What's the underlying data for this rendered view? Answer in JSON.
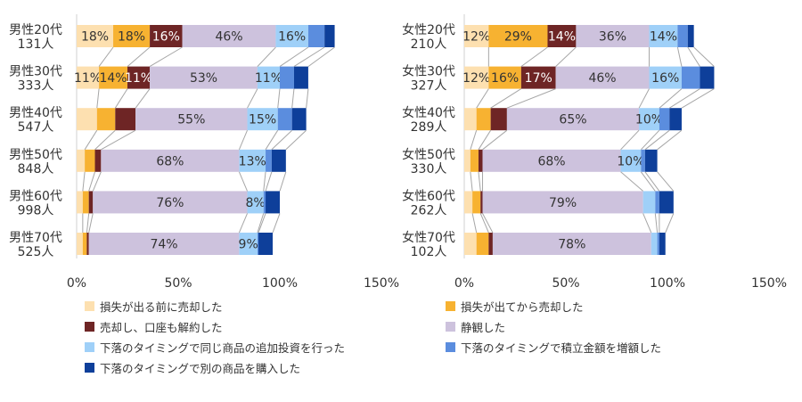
{
  "chart_data": [
    {
      "type": "bar",
      "orientation": "horizontal",
      "stacked": true,
      "categories": [
        [
          "男性20代",
          "131人"
        ],
        [
          "男性30代",
          "333人"
        ],
        [
          "男性40代",
          "547人"
        ],
        [
          "男性50代",
          "848人"
        ],
        [
          "男性60代",
          "998人"
        ],
        [
          "男性70代",
          "525人"
        ]
      ],
      "xlim": [
        0,
        150
      ],
      "xticks": [
        "0%",
        "50%",
        "100%",
        "150%"
      ],
      "grid": false,
      "series": [
        {
          "name": "損失が出る前に売却した",
          "values": [
            18,
            11,
            10,
            4,
            3,
            3
          ]
        },
        {
          "name": "損失が出てから売却した",
          "values": [
            18,
            14,
            9,
            5,
            3,
            2
          ]
        },
        {
          "name": "売却し、口座も解約した",
          "values": [
            16,
            11,
            10,
            3,
            2,
            1
          ]
        },
        {
          "name": "静観した",
          "values": [
            46,
            53,
            55,
            68,
            76,
            74
          ]
        },
        {
          "name": "下落のタイミングで同じ商品の追加投資を行った",
          "values": [
            16,
            11,
            15,
            13,
            8,
            9
          ]
        },
        {
          "name": "下落のタイミングで積立金額を増額した",
          "values": [
            8,
            7,
            7,
            3,
            1,
            0.5
          ]
        },
        {
          "name": "下落のタイミングで別の商品を購入した",
          "values": [
            5,
            7,
            7,
            7,
            7,
            7
          ]
        }
      ],
      "data_labels": [
        [
          "18%",
          "18%",
          "16%",
          "46%",
          "16%",
          "",
          ""
        ],
        [
          "11%",
          "14%",
          "11%",
          "53%",
          "11%",
          "",
          ""
        ],
        [
          "",
          "",
          "",
          "55%",
          "15%",
          "",
          ""
        ],
        [
          "",
          "",
          "",
          "68%",
          "13%",
          "",
          ""
        ],
        [
          "",
          "",
          "",
          "76%",
          "8%",
          "",
          ""
        ],
        [
          "",
          "",
          "",
          "74%",
          "9%",
          "",
          ""
        ]
      ]
    },
    {
      "type": "bar",
      "orientation": "horizontal",
      "stacked": true,
      "categories": [
        [
          "女性20代",
          "210人"
        ],
        [
          "女性30代",
          "327人"
        ],
        [
          "女性40代",
          "289人"
        ],
        [
          "女性50代",
          "330人"
        ],
        [
          "女性60代",
          "262人"
        ],
        [
          "女性70代",
          "102人"
        ]
      ],
      "xlim": [
        0,
        150
      ],
      "xticks": [
        "0%",
        "50%",
        "100%",
        "150%"
      ],
      "grid": false,
      "series": [
        {
          "name": "損失が出る前に売却した",
          "values": [
            12,
            12,
            6,
            3,
            4,
            6
          ]
        },
        {
          "name": "損失が出てから売却した",
          "values": [
            29,
            16,
            7,
            4,
            4,
            6
          ]
        },
        {
          "name": "売却し、口座も解約した",
          "values": [
            14,
            17,
            8,
            2,
            1,
            2
          ]
        },
        {
          "name": "静観した",
          "values": [
            36,
            46,
            65,
            68,
            79,
            78
          ]
        },
        {
          "name": "下落のタイミングで同じ商品の追加投資を行った",
          "values": [
            14,
            16,
            10,
            10,
            6,
            3
          ]
        },
        {
          "name": "下落のタイミングで積立金額を増額した",
          "values": [
            5,
            9,
            5,
            2,
            2,
            1
          ]
        },
        {
          "name": "下落のタイミングで別の商品を購入した",
          "values": [
            3,
            7,
            6,
            6,
            7,
            3
          ]
        }
      ],
      "data_labels": [
        [
          "12%",
          "29%",
          "14%",
          "36%",
          "14%",
          "",
          ""
        ],
        [
          "12%",
          "16%",
          "17%",
          "46%",
          "16%",
          "",
          ""
        ],
        [
          "",
          "",
          "",
          "65%",
          "10%",
          "",
          ""
        ],
        [
          "",
          "",
          "",
          "68%",
          "10%",
          "",
          ""
        ],
        [
          "",
          "",
          "",
          "79%",
          "",
          "",
          ""
        ],
        [
          "",
          "",
          "",
          "78%",
          "",
          "",
          ""
        ]
      ]
    }
  ],
  "legend": {
    "placement": "bottom",
    "items": [
      "損失が出る前に売却した",
      "損失が出てから売却した",
      "売却し、口座も解約した",
      "静観した",
      "下落のタイミングで同じ商品の追加投資を行った",
      "下落のタイミングで積立金額を増額した",
      "下落のタイミングで別の商品を購入した"
    ]
  },
  "colors": [
    "#fde0b0",
    "#f7b231",
    "#6e2525",
    "#cdc2dd",
    "#9fd0f8",
    "#5b8dde",
    "#0e3f9a"
  ],
  "label_colors": [
    "#333333",
    "#333333",
    "#ffffff",
    "#333333",
    "#333333",
    "#ffffff",
    "#ffffff"
  ],
  "connector_color": "#a6a6a6",
  "axis_color": "#d0d0d0"
}
